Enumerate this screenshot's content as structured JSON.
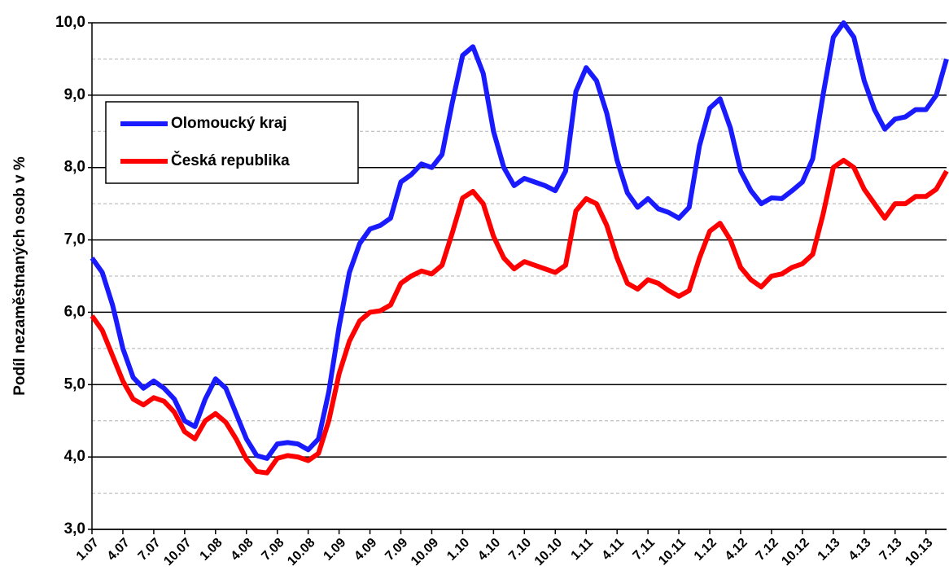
{
  "chart_data": {
    "type": "line",
    "y_label": "Podíl nezaměstnaných osob v %",
    "categories": [
      "1.07",
      null,
      null,
      "4.07",
      null,
      null,
      "7.07",
      null,
      null,
      "10.07",
      null,
      null,
      "1.08",
      null,
      null,
      "4.08",
      null,
      null,
      "7.08",
      null,
      null,
      "10.08",
      null,
      null,
      "1.09",
      null,
      null,
      "4.09",
      null,
      null,
      "7.09",
      null,
      null,
      "10.09",
      null,
      null,
      "1.10",
      null,
      null,
      "4.10",
      null,
      null,
      "7.10",
      null,
      null,
      "10.10",
      null,
      null,
      "1.11",
      null,
      null,
      "4.11",
      null,
      null,
      "7.11",
      null,
      null,
      "10.11",
      null,
      null,
      "1.12",
      null,
      null,
      "4.12",
      null,
      null,
      "7.12",
      null,
      null,
      "10.12",
      null,
      null,
      "1.13",
      null,
      null,
      "4.13",
      null,
      null,
      "7.13",
      null,
      null,
      "10.13",
      null,
      null
    ],
    "series": [
      {
        "name": "Olomoucký kraj",
        "color": "#1a1aff",
        "values": [
          6.75,
          6.55,
          6.1,
          5.5,
          5.1,
          4.95,
          5.05,
          4.95,
          4.8,
          4.5,
          4.42,
          4.8,
          5.08,
          4.95,
          4.6,
          4.25,
          4.02,
          3.98,
          4.18,
          4.2,
          4.18,
          4.1,
          4.25,
          4.9,
          5.8,
          6.55,
          6.95,
          7.15,
          7.2,
          7.3,
          7.8,
          7.9,
          8.05,
          8.0,
          8.18,
          8.9,
          9.55,
          9.67,
          9.3,
          8.5,
          8.0,
          7.75,
          7.85,
          7.8,
          7.75,
          7.68,
          7.95,
          9.05,
          9.38,
          9.2,
          8.75,
          8.1,
          7.65,
          7.45,
          7.57,
          7.43,
          7.38,
          7.3,
          7.45,
          8.3,
          8.82,
          8.95,
          8.55,
          7.95,
          7.68,
          7.5,
          7.58,
          7.57,
          7.68,
          7.8,
          8.12,
          9.0,
          9.8,
          10.0,
          9.8,
          9.2,
          8.8,
          8.53,
          8.67,
          8.7,
          8.8,
          8.8,
          9.0,
          9.5
        ]
      },
      {
        "name": "Česká republika",
        "color": "#ff0000",
        "values": [
          5.95,
          5.75,
          5.4,
          5.05,
          4.8,
          4.72,
          4.82,
          4.77,
          4.62,
          4.35,
          4.25,
          4.5,
          4.6,
          4.48,
          4.25,
          3.97,
          3.8,
          3.78,
          3.98,
          4.02,
          4.0,
          3.95,
          4.05,
          4.5,
          5.15,
          5.6,
          5.88,
          6.0,
          6.02,
          6.1,
          6.4,
          6.5,
          6.57,
          6.53,
          6.65,
          7.1,
          7.58,
          7.67,
          7.5,
          7.05,
          6.75,
          6.6,
          6.7,
          6.65,
          6.6,
          6.55,
          6.65,
          7.4,
          7.57,
          7.5,
          7.2,
          6.75,
          6.4,
          6.32,
          6.45,
          6.4,
          6.3,
          6.22,
          6.3,
          6.75,
          7.12,
          7.23,
          7.0,
          6.62,
          6.45,
          6.35,
          6.5,
          6.53,
          6.62,
          6.67,
          6.8,
          7.35,
          8.0,
          8.1,
          8.0,
          7.7,
          7.5,
          7.3,
          7.5,
          7.5,
          7.6,
          7.6,
          7.7,
          7.95
        ]
      }
    ],
    "ylim": [
      3,
      10
    ],
    "yticks": [
      {
        "value": 3,
        "label": "3,0"
      },
      {
        "value": 4,
        "label": "4,0"
      },
      {
        "value": 5,
        "label": "5,0"
      },
      {
        "value": 6,
        "label": "6,0"
      },
      {
        "value": 7,
        "label": "7,0"
      },
      {
        "value": 8,
        "label": "8,0"
      },
      {
        "value": 9,
        "label": "9,0"
      },
      {
        "value": 10,
        "label": "10,0"
      }
    ],
    "minor_gridlines": [
      3.5,
      4.5,
      5.5,
      6.5,
      7.5,
      8.5,
      9.5
    ],
    "grid": true,
    "legend": "upper left"
  }
}
